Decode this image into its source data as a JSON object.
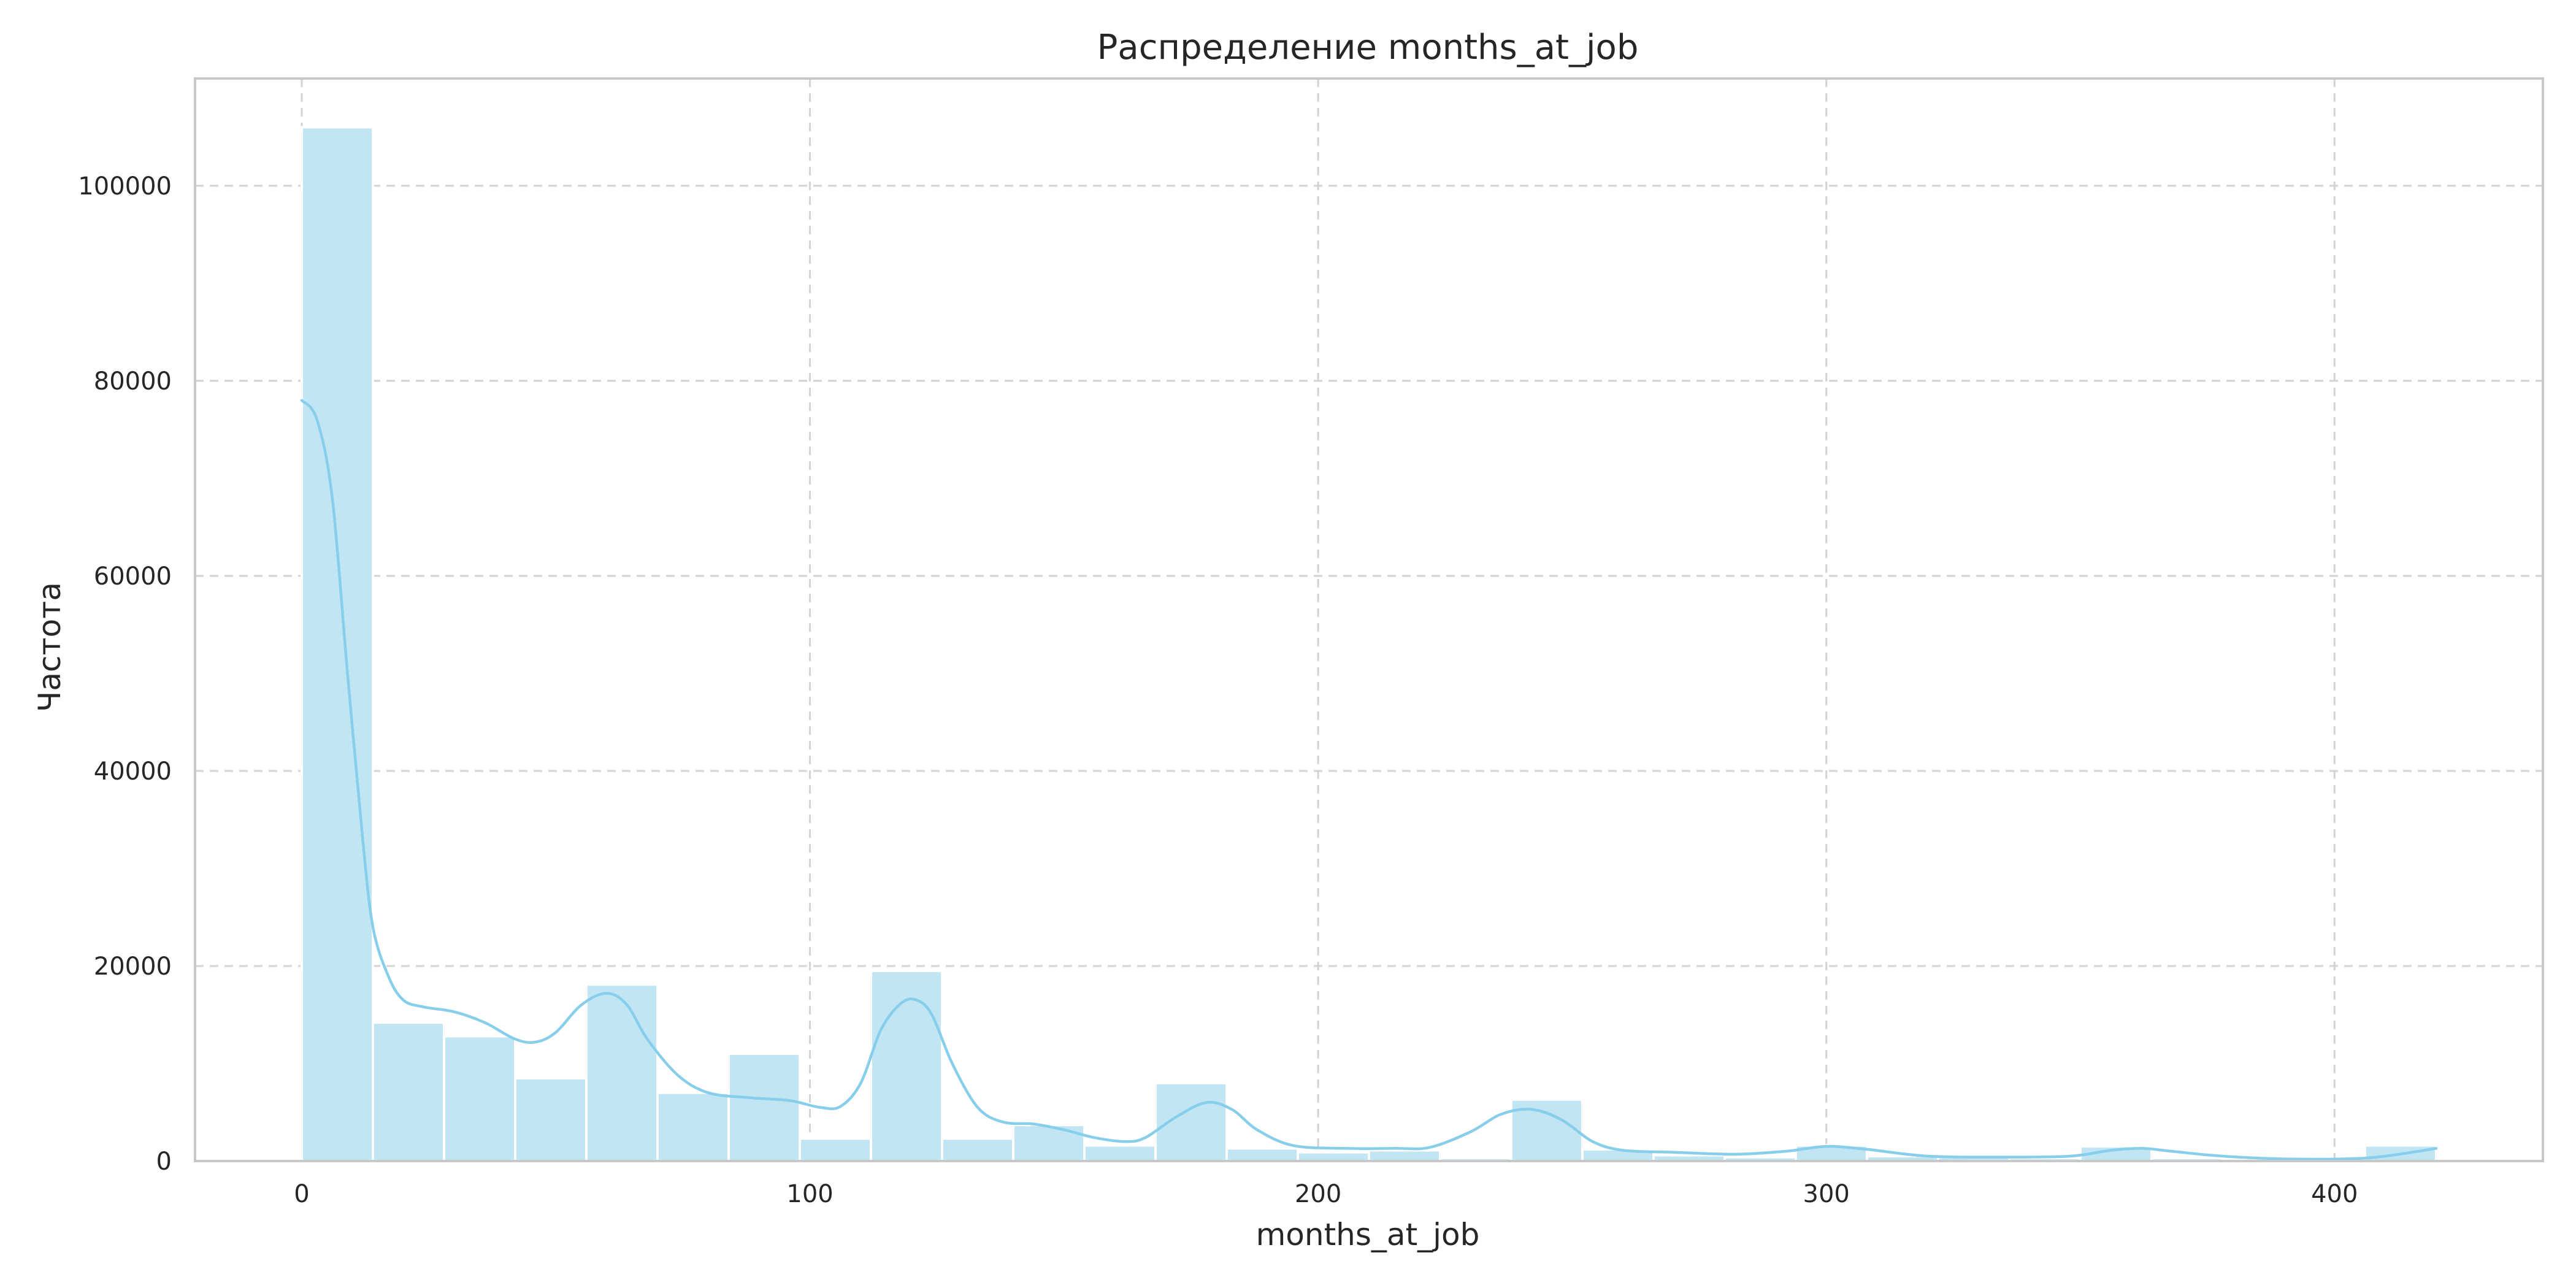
{
  "chart_data": {
    "type": "bar",
    "subtype": "histogram-with-kde",
    "title": "Распределение months_at_job",
    "xlabel": "months_at_job",
    "ylabel": "Частота",
    "xlim": [
      -21,
      441
    ],
    "ylim": [
      0,
      111000
    ],
    "x_ticks": [
      0,
      100,
      200,
      300,
      400
    ],
    "y_ticks": [
      0,
      20000,
      40000,
      60000,
      80000,
      100000
    ],
    "grid": true,
    "bin_width": 14,
    "bins": [
      {
        "start": 0,
        "end": 14,
        "count": 106000
      },
      {
        "start": 14,
        "end": 28,
        "count": 14200
      },
      {
        "start": 28,
        "end": 42,
        "count": 12800
      },
      {
        "start": 42,
        "end": 56,
        "count": 8500
      },
      {
        "start": 56,
        "end": 70,
        "count": 18100
      },
      {
        "start": 70,
        "end": 84,
        "count": 7000
      },
      {
        "start": 84,
        "end": 98,
        "count": 11000
      },
      {
        "start": 98,
        "end": 112,
        "count": 2300
      },
      {
        "start": 112,
        "end": 126,
        "count": 19500
      },
      {
        "start": 126,
        "end": 140,
        "count": 2300
      },
      {
        "start": 140,
        "end": 154,
        "count": 3700
      },
      {
        "start": 154,
        "end": 168,
        "count": 1600
      },
      {
        "start": 168,
        "end": 182,
        "count": 8000
      },
      {
        "start": 182,
        "end": 196,
        "count": 1300
      },
      {
        "start": 196,
        "end": 210,
        "count": 900
      },
      {
        "start": 210,
        "end": 224,
        "count": 1100
      },
      {
        "start": 224,
        "end": 238,
        "count": 300
      },
      {
        "start": 238,
        "end": 252,
        "count": 6300
      },
      {
        "start": 252,
        "end": 266,
        "count": 1200
      },
      {
        "start": 266,
        "end": 280,
        "count": 600
      },
      {
        "start": 280,
        "end": 294,
        "count": 400
      },
      {
        "start": 294,
        "end": 308,
        "count": 1600
      },
      {
        "start": 308,
        "end": 322,
        "count": 500
      },
      {
        "start": 322,
        "end": 336,
        "count": 400
      },
      {
        "start": 336,
        "end": 350,
        "count": 300
      },
      {
        "start": 350,
        "end": 364,
        "count": 1500
      },
      {
        "start": 364,
        "end": 378,
        "count": 300
      },
      {
        "start": 378,
        "end": 392,
        "count": 200
      },
      {
        "start": 392,
        "end": 406,
        "count": 200
      },
      {
        "start": 406,
        "end": 420,
        "count": 1600
      }
    ],
    "kde": {
      "x": [
        0,
        3,
        6,
        9,
        12,
        14,
        17,
        20,
        24,
        30,
        36,
        42,
        46,
        50,
        55,
        60,
        64,
        68,
        74,
        80,
        88,
        96,
        102,
        106,
        110,
        114,
        118,
        121,
        124,
        128,
        133,
        138,
        144,
        150,
        156,
        162,
        166,
        172,
        178,
        183,
        188,
        195,
        205,
        215,
        222,
        230,
        236,
        242,
        248,
        254,
        260,
        270,
        282,
        292,
        300,
        308,
        320,
        335,
        348,
        356,
        362,
        368,
        378,
        392,
        406,
        414,
        420
      ],
      "y": [
        78000,
        76000,
        68000,
        50000,
        33000,
        24000,
        19000,
        16500,
        15800,
        15300,
        14200,
        12500,
        12200,
        13200,
        16000,
        17200,
        16000,
        12500,
        8800,
        7000,
        6500,
        6200,
        5500,
        5600,
        8000,
        13500,
        16200,
        16500,
        15000,
        10000,
        5500,
        4000,
        3800,
        3200,
        2400,
        2000,
        2400,
        4500,
        6000,
        5300,
        3200,
        1600,
        1300,
        1300,
        1400,
        3000,
        4800,
        5300,
        4200,
        2000,
        1100,
        900,
        700,
        1000,
        1500,
        1200,
        500,
        400,
        500,
        1100,
        1300,
        1000,
        500,
        200,
        300,
        800,
        1300
      ]
    },
    "colors": {
      "bar_fill": "#c2e5f3",
      "kde_line": "#87ceeb",
      "grid": "#d3d3d3",
      "frame": "#c8c8c8",
      "text": "#262626"
    }
  }
}
